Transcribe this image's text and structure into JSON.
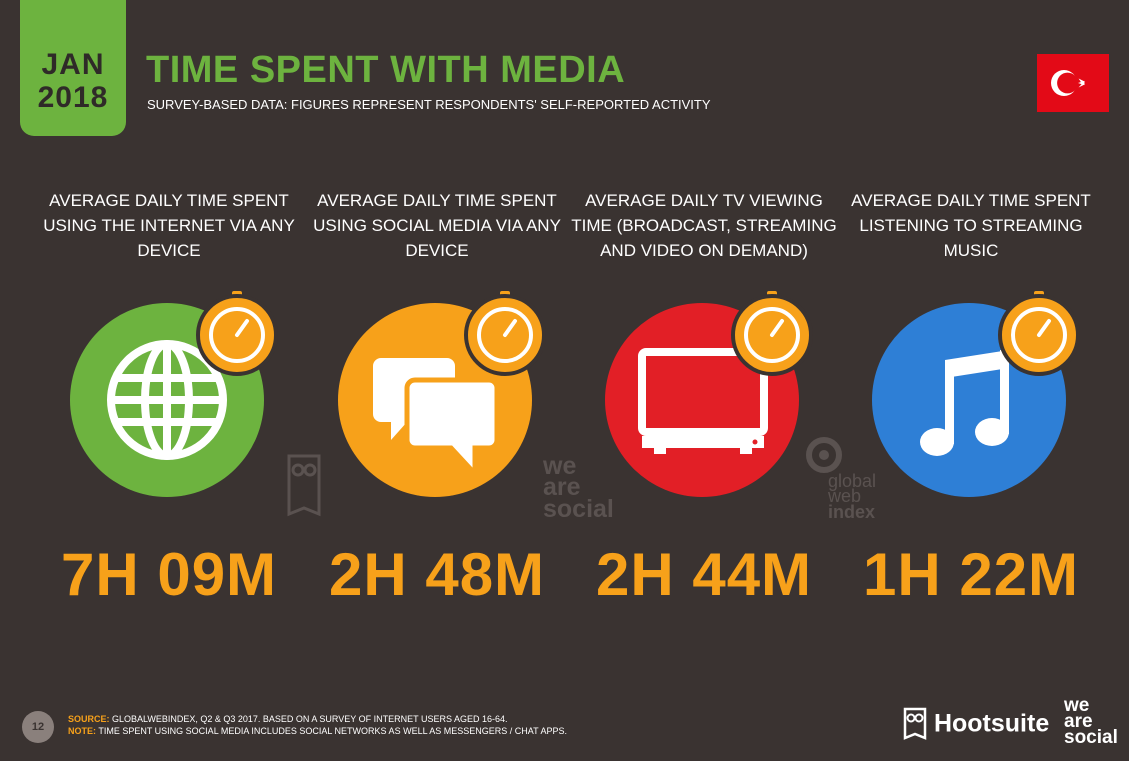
{
  "header": {
    "month": "JAN",
    "year": "2018",
    "title": "TIME SPENT WITH MEDIA",
    "subtitle": "SURVEY-BASED DATA: FIGURES REPRESENT RESPONDENTS' SELF-REPORTED ACTIVITY"
  },
  "stats": [
    {
      "label": "AVERAGE DAILY TIME SPENT USING THE INTERNET VIA ANY DEVICE",
      "value": "7H 09M",
      "color": "#6db33f",
      "icon": "globe-icon"
    },
    {
      "label": "AVERAGE DAILY TIME SPENT USING SOCIAL MEDIA VIA ANY DEVICE",
      "value": "2H 48M",
      "color": "#f7a11a",
      "icon": "speech-bubbles-icon"
    },
    {
      "label": "AVERAGE DAILY TV VIEWING TIME (BROADCAST, STREAMING AND VIDEO ON DEMAND)",
      "value": "2H 44M",
      "color": "#e21f26",
      "icon": "tv-icon"
    },
    {
      "label": "AVERAGE DAILY TIME SPENT LISTENING TO STREAMING MUSIC",
      "value": "1H 22M",
      "color": "#2e7fd6",
      "icon": "music-note-icon"
    }
  ],
  "watermarks": {
    "we_are_social": [
      "we",
      "are",
      "social"
    ],
    "global_web_index": [
      "global",
      "web",
      "index"
    ]
  },
  "footer": {
    "page_number": "12",
    "source_key": "SOURCE:",
    "source_text": " GLOBALWEBINDEX, Q2 & Q3 2017. BASED ON A SURVEY OF INTERNET USERS AGED 16-64.",
    "note_key": "NOTE:",
    "note_text": " TIME SPENT USING SOCIAL MEDIA INCLUDES SOCIAL NETWORKS AS WELL AS MESSENGERS / CHAT APPS.",
    "hootsuite": "Hootsuite",
    "we_are_social": [
      "we",
      "are",
      "social"
    ]
  },
  "colors": {
    "background": "#3a3331",
    "green": "#6db33f",
    "orange": "#f7a11a",
    "red": "#e21f26",
    "blue": "#2e7fd6",
    "flag_red": "#e30a17"
  }
}
